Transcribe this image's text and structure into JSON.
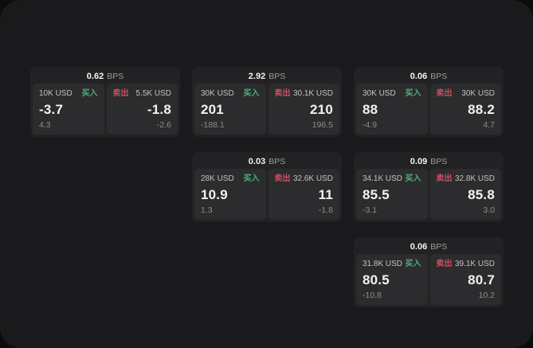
{
  "colors": {
    "outer_bg": "#0c0c0d",
    "panel_bg": "#1a1a1c",
    "card_bg": "#222224",
    "tile_bg": "#2c2c2e",
    "buy": "#4db077",
    "sell": "#c95060",
    "text_primary": "#f2f2f2",
    "text_secondary": "#c2c2c2",
    "text_muted": "#9c9c9c",
    "text_dim": "#8c8c8c"
  },
  "labels": {
    "bps_unit": "BPS",
    "buy": "买入",
    "sell": "卖出"
  },
  "cards": [
    {
      "row": 1,
      "col": 1,
      "bps": "0.62",
      "buy": {
        "amount": "10K USD",
        "price": "-3.7",
        "delta": "4.3"
      },
      "sell": {
        "amount": "5.5K USD",
        "price": "-1.8",
        "delta": "-2.6"
      }
    },
    {
      "row": 1,
      "col": 2,
      "bps": "2.92",
      "buy": {
        "amount": "30K USD",
        "price": "201",
        "delta": "-188.1"
      },
      "sell": {
        "amount": "30.1K USD",
        "price": "210",
        "delta": "196.5"
      }
    },
    {
      "row": 1,
      "col": 3,
      "bps": "0.06",
      "buy": {
        "amount": "30K USD",
        "price": "88",
        "delta": "-4.9"
      },
      "sell": {
        "amount": "30K USD",
        "price": "88.2",
        "delta": "4.7"
      }
    },
    {
      "row": 2,
      "col": 2,
      "bps": "0.03",
      "buy": {
        "amount": "28K USD",
        "price": "10.9",
        "delta": "1.3"
      },
      "sell": {
        "amount": "32.6K USD",
        "price": "11",
        "delta": "-1.8"
      }
    },
    {
      "row": 2,
      "col": 3,
      "bps": "0.09",
      "buy": {
        "amount": "34.1K USD",
        "price": "85.5",
        "delta": "-3.1"
      },
      "sell": {
        "amount": "32.8K USD",
        "price": "85.8",
        "delta": "3.0"
      }
    },
    {
      "row": 3,
      "col": 3,
      "bps": "0.06",
      "buy": {
        "amount": "31.8K USD",
        "price": "80.5",
        "delta": "-10.8"
      },
      "sell": {
        "amount": "39.1K USD",
        "price": "80.7",
        "delta": "10.2"
      }
    }
  ]
}
